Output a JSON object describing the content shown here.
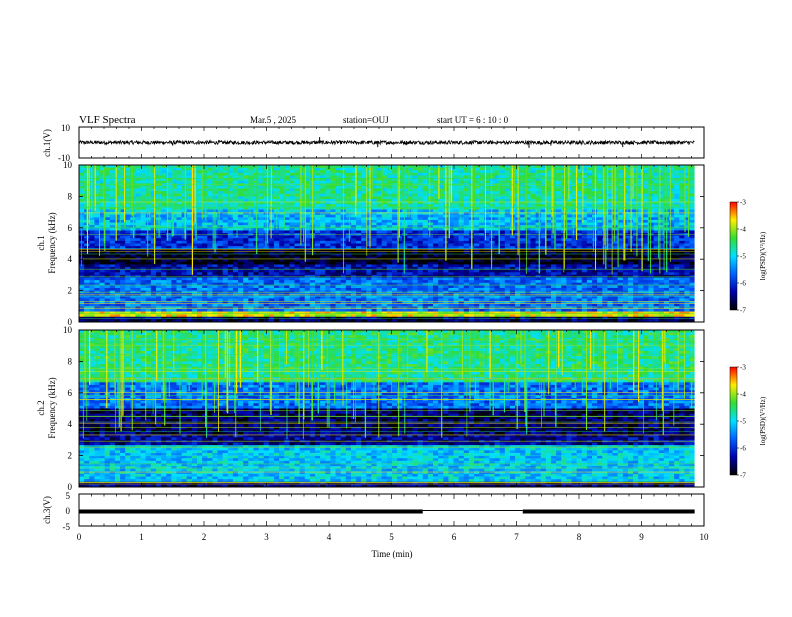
{
  "header": {
    "title": "VLF Spectra",
    "date": "Mar.5 , 2025",
    "station": "station=OUJ",
    "start": "start UT = 6 : 10 : 0"
  },
  "colorbar": {
    "label": "log(PSD)(V²/Hz)",
    "ticks": [
      "-3",
      "-4",
      "-5",
      "-6",
      "-7"
    ],
    "stops": [
      "#ff0000",
      "#ffee00",
      "#33dd33",
      "#00e0ff",
      "#0060ff",
      "#0000aa",
      "#000000"
    ]
  },
  "chart_data": [
    {
      "type": "line",
      "name": "ch.1 waveform",
      "ylabel": "ch.1(V)",
      "ylim": [
        -10,
        10
      ],
      "yticks": [
        "10",
        "-10"
      ],
      "xlim": [
        0,
        9.85
      ],
      "baseline": 0,
      "noise_amplitude": 1.2,
      "spikes": [
        {
          "x": 3.85,
          "y": 3.5
        },
        {
          "x": 4.78,
          "y": -3.0
        },
        {
          "x": 7.2,
          "y": -3.5
        },
        {
          "x": 7.55,
          "y": -2.0
        },
        {
          "x": 8.7,
          "y": -3.0
        },
        {
          "x": 1.5,
          "y": -2.0
        }
      ]
    },
    {
      "type": "heatmap",
      "name": "ch.1 spectrogram",
      "ylabel": "ch.1\nFrequency (kHz)",
      "xlim": [
        0,
        10
      ],
      "ylim": [
        0,
        10
      ],
      "yticks": [
        "0",
        "2",
        "4",
        "6",
        "8",
        "10"
      ],
      "zlim": [
        -7,
        -3
      ],
      "band_log_psd": [
        {
          "f0": 0.0,
          "f1": 0.3,
          "z": -6.6
        },
        {
          "f0": 0.3,
          "f1": 0.6,
          "z": -3.8
        },
        {
          "f0": 0.6,
          "f1": 2.8,
          "z": -5.6
        },
        {
          "f0": 2.8,
          "f1": 3.6,
          "z": -6.3
        },
        {
          "f0": 3.6,
          "f1": 4.6,
          "z": -6.9
        },
        {
          "f0": 4.6,
          "f1": 5.8,
          "z": -6.0
        },
        {
          "f0": 5.8,
          "f1": 7.2,
          "z": -5.2
        },
        {
          "f0": 7.2,
          "f1": 10.0,
          "z": -4.7
        }
      ]
    },
    {
      "type": "heatmap",
      "name": "ch.2 spectrogram",
      "ylabel": "ch.2\nFrequency (kHz)",
      "xlim": [
        0,
        10
      ],
      "ylim": [
        0,
        10
      ],
      "yticks": [
        "0",
        "2",
        "4",
        "6",
        "8",
        "10"
      ],
      "zlim": [
        -7,
        -3
      ],
      "band_log_psd": [
        {
          "f0": 0.0,
          "f1": 0.4,
          "z": -6.5
        },
        {
          "f0": 0.4,
          "f1": 2.6,
          "z": -5.1
        },
        {
          "f0": 2.6,
          "f1": 3.4,
          "z": -6.4
        },
        {
          "f0": 3.4,
          "f1": 5.0,
          "z": -6.6
        },
        {
          "f0": 5.0,
          "f1": 6.6,
          "z": -5.6
        },
        {
          "f0": 6.6,
          "f1": 10.0,
          "z": -4.6
        }
      ]
    },
    {
      "type": "line",
      "name": "ch.3 signal",
      "ylabel": "ch.3(V)",
      "xlabel": "Time (min)",
      "xlim": [
        0,
        10
      ],
      "ylim": [
        -5,
        5
      ],
      "yticks": [
        "5",
        "0",
        "-5"
      ],
      "xticks": [
        "0",
        "1",
        "2",
        "3",
        "4",
        "5",
        "6",
        "7",
        "8",
        "9",
        "10"
      ],
      "segments": [
        {
          "x0": 0.0,
          "x1": 5.5,
          "y": 0
        },
        {
          "x0": 5.5,
          "x1": 7.1,
          "y": 0.3
        },
        {
          "x0": 7.1,
          "x1": 9.85,
          "y": 0
        }
      ]
    }
  ]
}
